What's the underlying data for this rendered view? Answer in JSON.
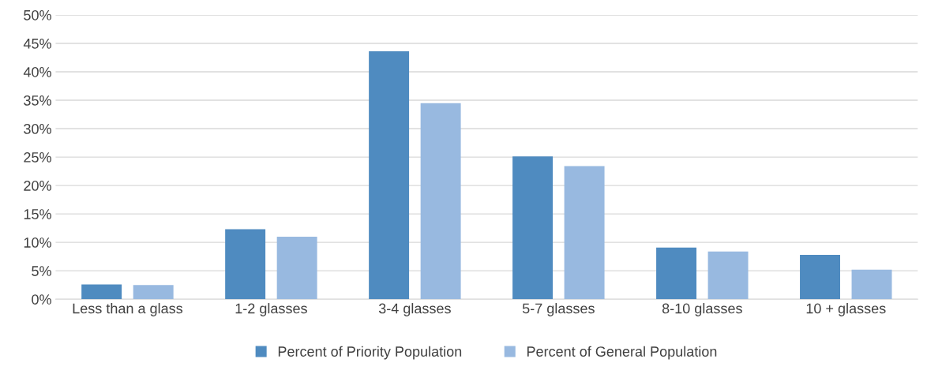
{
  "chart_data": {
    "type": "bar",
    "categories": [
      "Less than a glass",
      "1-2 glasses",
      "3-4 glasses",
      "5-7 glasses",
      "8-10 glasses",
      "10 + glasses"
    ],
    "series": [
      {
        "name": "Percent of Priority Population",
        "color": "#4f8bc0",
        "values": [
          2.6,
          12.3,
          43.6,
          25.1,
          9.1,
          7.8
        ]
      },
      {
        "name": "Percent of General Population",
        "color": "#98b9e0",
        "values": [
          2.5,
          11.0,
          34.5,
          23.4,
          8.4,
          5.2
        ]
      }
    ],
    "ylim": [
      0,
      50
    ],
    "yticks": [
      {
        "value": 0,
        "label": "0%"
      },
      {
        "value": 5,
        "label": "5%"
      },
      {
        "value": 10,
        "label": "10%"
      },
      {
        "value": 15,
        "label": "15%"
      },
      {
        "value": 20,
        "label": "20%"
      },
      {
        "value": 25,
        "label": "25%"
      },
      {
        "value": 30,
        "label": "30%"
      },
      {
        "value": 35,
        "label": "35%"
      },
      {
        "value": 40,
        "label": "40%"
      },
      {
        "value": 45,
        "label": "45%"
      },
      {
        "value": 50,
        "label": "50%"
      }
    ],
    "grid": "y",
    "legend": "bottom"
  }
}
